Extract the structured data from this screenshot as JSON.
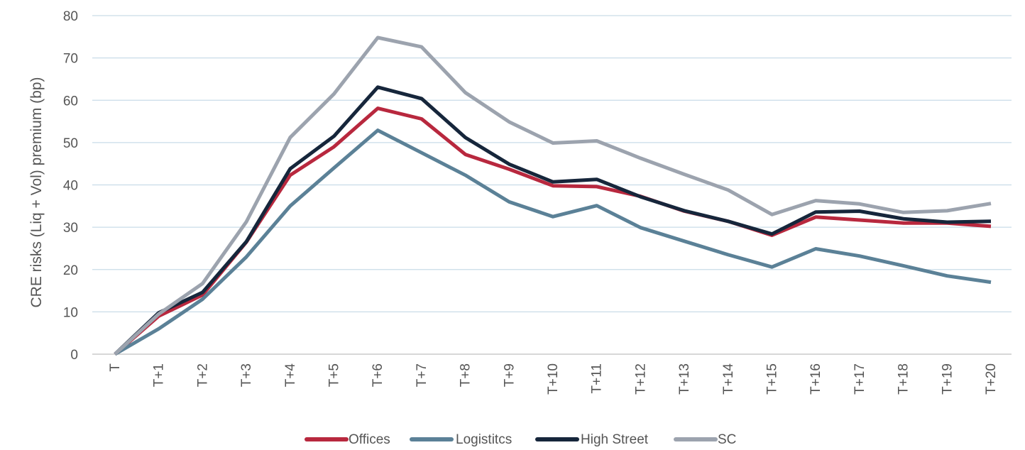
{
  "chart_data": {
    "type": "line",
    "title": "",
    "xlabel": "",
    "ylabel": "CRE risks (Liq + Vol) premium (bp)",
    "ylim": [
      0,
      80
    ],
    "yticks": [
      0,
      10,
      20,
      30,
      40,
      50,
      60,
      70,
      80
    ],
    "grid": true,
    "legend_position": "bottom",
    "categories": [
      "T",
      "T+1",
      "T+2",
      "T+3",
      "T+4",
      "T+5",
      "T+6",
      "T+7",
      "T+8",
      "T+9",
      "T+10",
      "T+11",
      "T+12",
      "T+13",
      "T+14",
      "T+15",
      "T+16",
      "T+17",
      "T+18",
      "T+19",
      "T+20"
    ],
    "series": [
      {
        "name": "Offices",
        "color": "#b8283e",
        "values": [
          0,
          9,
          14,
          26.5,
          42.3,
          49,
          58.1,
          55.6,
          47.2,
          43.7,
          39.8,
          39.6,
          37.3,
          33.8,
          31.4,
          28.1,
          32.4,
          31.7,
          31,
          31,
          30.2
        ]
      },
      {
        "name": "Logistitcs",
        "color": "#5b8197",
        "values": [
          0,
          6,
          13,
          23,
          35,
          44,
          52.9,
          47.6,
          42.3,
          36,
          32.5,
          35.1,
          29.9,
          26.7,
          23.5,
          20.6,
          24.9,
          23.2,
          20.9,
          18.5,
          17
        ]
      },
      {
        "name": "High Street",
        "color": "#16263b",
        "values": [
          0,
          9.8,
          14.6,
          26.6,
          43.8,
          51.5,
          63.1,
          60.4,
          51.2,
          44.9,
          40.7,
          41.3,
          37.2,
          33.9,
          31.4,
          28.4,
          33.6,
          33.8,
          32,
          31.2,
          31.4
        ]
      },
      {
        "name": "SC",
        "color": "#9ca3ae",
        "values": [
          0,
          9.5,
          16.7,
          31.3,
          51.2,
          61.5,
          74.8,
          72.6,
          61.8,
          54.9,
          49.9,
          50.4,
          46.3,
          42.5,
          38.8,
          33,
          36.3,
          35.5,
          33.5,
          33.9,
          35.6
        ]
      }
    ]
  }
}
